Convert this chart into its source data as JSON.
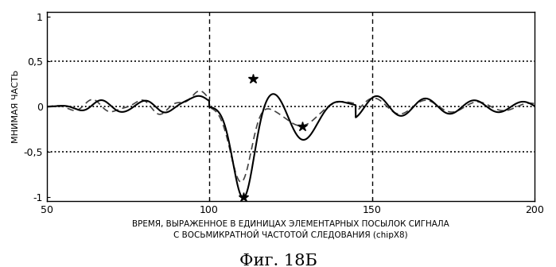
{
  "xlim": [
    50,
    200
  ],
  "ylim": [
    -1.05,
    1.05
  ],
  "xticks": [
    50,
    100,
    150,
    200
  ],
  "yticks": [
    -1.0,
    -0.5,
    0,
    0.5,
    1.0
  ],
  "ytick_labels": [
    "-1",
    "-0,5",
    "0",
    "0,5",
    "1"
  ],
  "xtick_labels": [
    "50",
    "100",
    "150",
    "200"
  ],
  "hlines_dotted": [
    0.5,
    0.0,
    -0.5
  ],
  "vlines_dashed": [
    100,
    150
  ],
  "xlabel_line1": "ВРЕМЯ, ВЫРАЖЕННОЕ В ЕДИНИЦАХ ЭЛЕМЕНТАРНЫХ ПОСЫЛОК СИГНАЛА",
  "xlabel_line2": "С ВОСЬМИКРАТНОЙ ЧАСТОТОЙ СЛЕДОВАНИЯ (chipX8)",
  "ylabel": "МНИМАЯ ЧАСТЬ",
  "fig_label": "Фиг. 18Б",
  "background_color": "#ffffff",
  "line_color_solid": "#000000",
  "line_color_dashed": "#444444",
  "marker_color": "#000000",
  "star_points_dashed": [
    [
      113.5,
      0.31
    ],
    [
      150.5,
      -0.08
    ]
  ],
  "star_points_both": [
    [
      110.5,
      -1.0
    ]
  ],
  "star_point_cross": [
    [
      128.5,
      -0.22
    ]
  ]
}
